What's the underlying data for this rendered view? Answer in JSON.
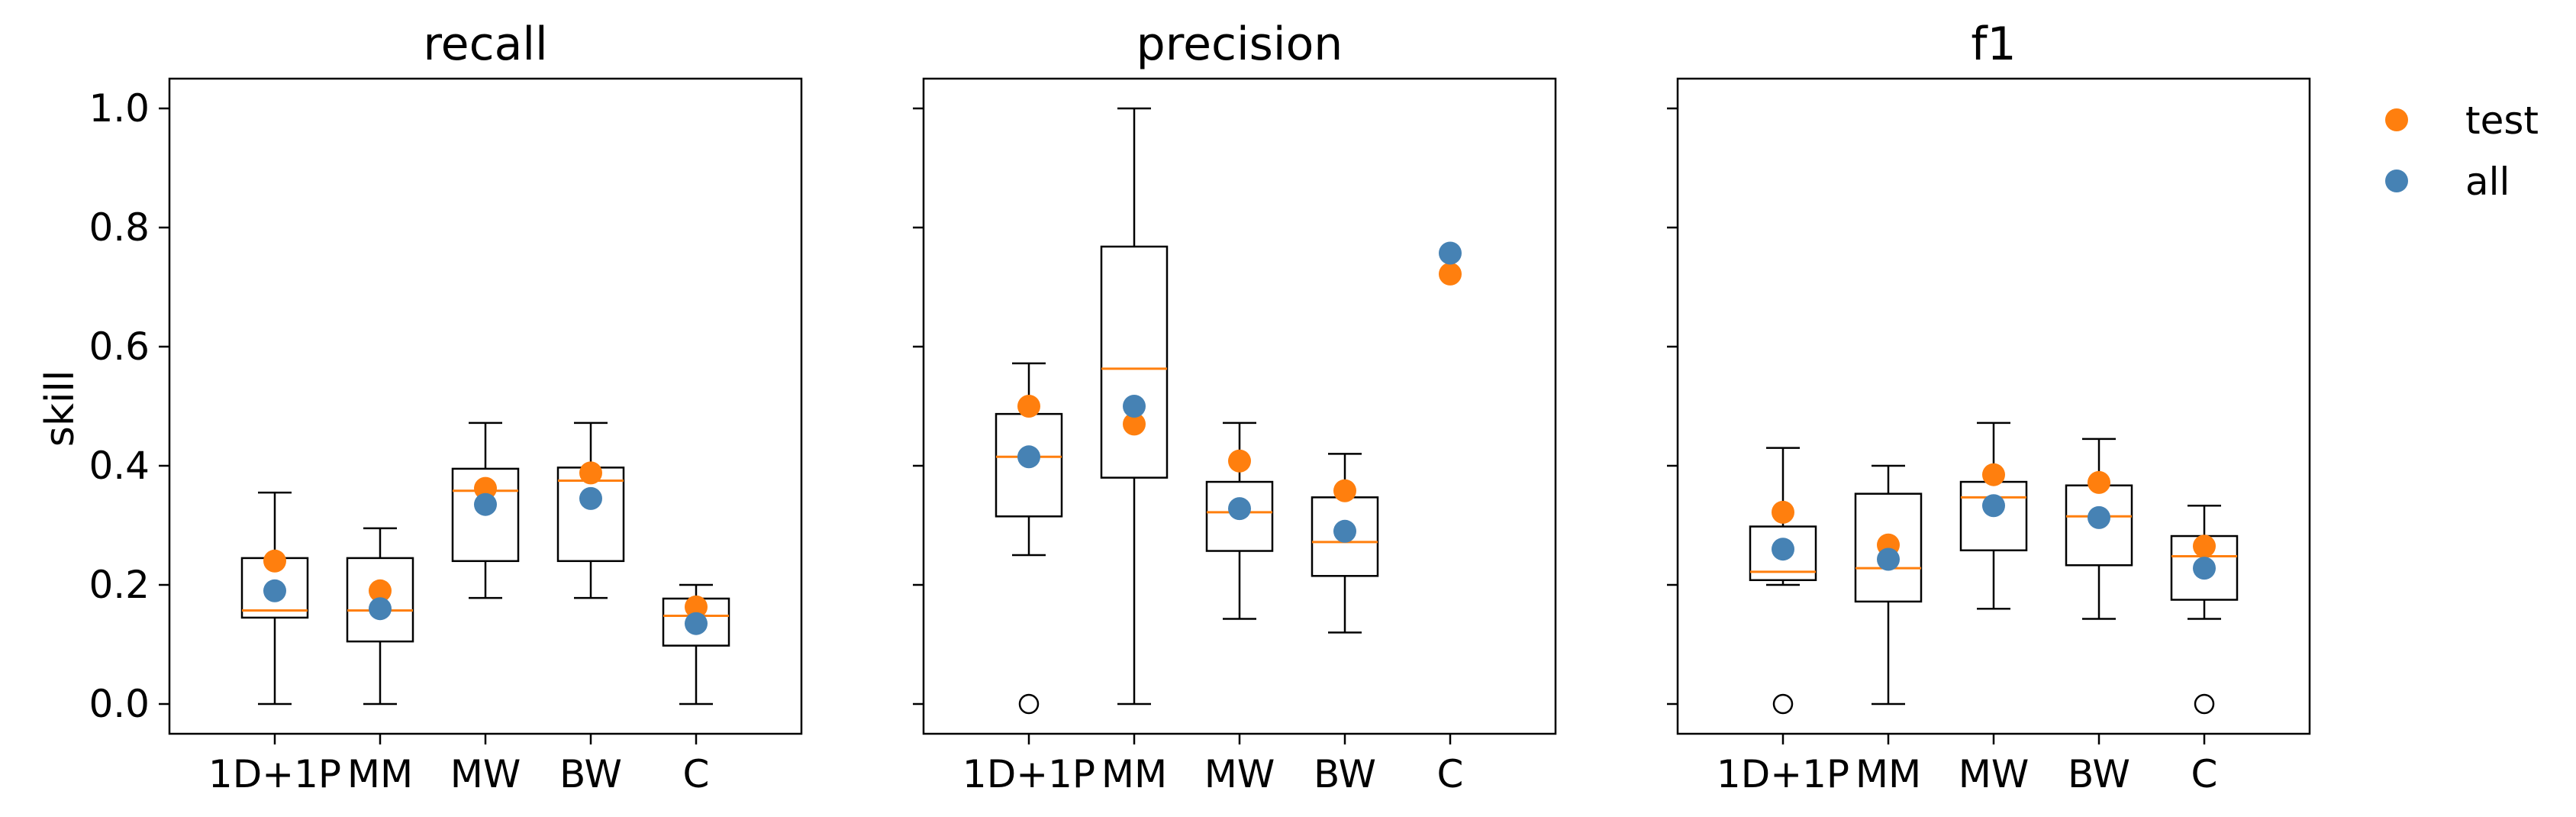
{
  "chart_data": [
    {
      "type": "box",
      "title": "recall",
      "ylabel": "skill",
      "ylim": [
        -0.05,
        1.05
      ],
      "yticks": [
        "0.0",
        "0.2",
        "0.4",
        "0.6",
        "0.8",
        "1.0"
      ],
      "categories": [
        "1D+1P",
        "MM",
        "MW",
        "BW",
        "C"
      ],
      "boxes": [
        {
          "whislo": 0.0,
          "q1": 0.145,
          "med": 0.157,
          "q3": 0.245,
          "whishi": 0.355,
          "fliers": []
        },
        {
          "whislo": 0.0,
          "q1": 0.105,
          "med": 0.157,
          "q3": 0.245,
          "whishi": 0.295,
          "fliers": []
        },
        {
          "whislo": 0.178,
          "q1": 0.24,
          "med": 0.358,
          "q3": 0.395,
          "whishi": 0.472,
          "fliers": []
        },
        {
          "whislo": 0.178,
          "q1": 0.24,
          "med": 0.375,
          "q3": 0.397,
          "whishi": 0.472,
          "fliers": []
        },
        {
          "whislo": 0.0,
          "q1": 0.098,
          "med": 0.148,
          "q3": 0.177,
          "whishi": 0.2,
          "fliers": []
        }
      ],
      "series": [
        {
          "name": "test",
          "values": [
            0.24,
            0.19,
            0.362,
            0.388,
            0.163
          ]
        },
        {
          "name": "all",
          "values": [
            0.19,
            0.16,
            0.335,
            0.345,
            0.135
          ]
        }
      ]
    },
    {
      "type": "box",
      "title": "precision",
      "ylim": [
        -0.05,
        1.05
      ],
      "categories": [
        "1D+1P",
        "MM",
        "MW",
        "BW",
        "C"
      ],
      "boxes": [
        {
          "whislo": 0.25,
          "q1": 0.315,
          "med": 0.415,
          "q3": 0.487,
          "whishi": 0.572,
          "fliers": [
            0.0
          ]
        },
        {
          "whislo": 0.0,
          "q1": 0.38,
          "med": 0.563,
          "q3": 0.768,
          "whishi": 1.0,
          "fliers": []
        },
        {
          "whislo": 0.143,
          "q1": 0.257,
          "med": 0.322,
          "q3": 0.373,
          "whishi": 0.472,
          "fliers": []
        },
        {
          "whislo": 0.12,
          "q1": 0.215,
          "med": 0.272,
          "q3": 0.347,
          "whishi": 0.42,
          "fliers": []
        },
        null
      ],
      "series": [
        {
          "name": "test",
          "values": [
            0.5,
            0.47,
            0.408,
            0.358,
            0.722
          ]
        },
        {
          "name": "all",
          "values": [
            0.415,
            0.5,
            0.328,
            0.29,
            0.757
          ]
        }
      ]
    },
    {
      "type": "box",
      "title": "f1",
      "ylim": [
        -0.05,
        1.05
      ],
      "categories": [
        "1D+1P",
        "MM",
        "MW",
        "BW",
        "C"
      ],
      "boxes": [
        {
          "whislo": 0.2,
          "q1": 0.208,
          "med": 0.222,
          "q3": 0.298,
          "whishi": 0.43,
          "fliers": [
            0.0
          ]
        },
        {
          "whislo": 0.0,
          "q1": 0.172,
          "med": 0.228,
          "q3": 0.353,
          "whishi": 0.4,
          "fliers": []
        },
        {
          "whislo": 0.16,
          "q1": 0.258,
          "med": 0.347,
          "q3": 0.373,
          "whishi": 0.472,
          "fliers": []
        },
        {
          "whislo": 0.143,
          "q1": 0.233,
          "med": 0.315,
          "q3": 0.367,
          "whishi": 0.445,
          "fliers": []
        },
        {
          "whislo": 0.143,
          "q1": 0.175,
          "med": 0.248,
          "q3": 0.282,
          "whishi": 0.333,
          "fliers": [
            0.0
          ]
        }
      ],
      "series": [
        {
          "name": "test",
          "values": [
            0.322,
            0.267,
            0.385,
            0.372,
            0.265
          ]
        },
        {
          "name": "all",
          "values": [
            0.26,
            0.243,
            0.333,
            0.313,
            0.228
          ]
        }
      ]
    }
  ],
  "legend": {
    "position": "upper-right-outside",
    "items": [
      {
        "label": "test",
        "color": "#ff7f0e"
      },
      {
        "label": "all",
        "color": "#4682b4"
      }
    ]
  },
  "colors": {
    "median": "#ff7f0e",
    "test": "#ff7f0e",
    "all": "#4682b4",
    "box": "#000000"
  }
}
